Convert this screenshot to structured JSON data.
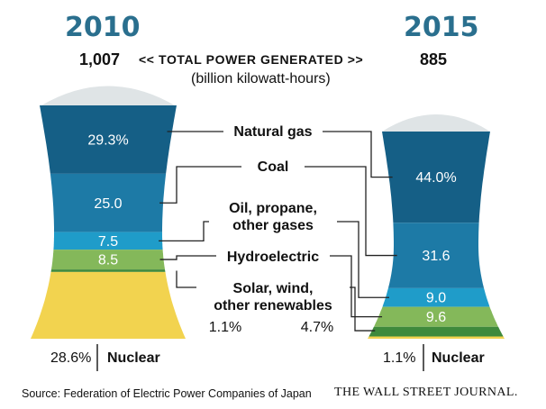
{
  "chart_data": {
    "type": "bar",
    "header": {
      "year_left": "2010",
      "year_right": "2015",
      "total_left": "1,007",
      "total_right": "885",
      "total_label": "<< TOTAL POWER GENERATED >>",
      "units": "(billion kilowatt-hours)"
    },
    "categories": [
      "Natural gas",
      "Coal",
      "Oil, propane, other gases",
      "Hydroelectric",
      "Solar, wind, other renewables",
      "Nuclear"
    ],
    "series": [
      {
        "year": "2010",
        "values": [
          29.3,
          25.0,
          7.5,
          8.5,
          1.1,
          28.6
        ],
        "labels": [
          "29.3%",
          "25.0",
          "7.5",
          "8.5",
          "1.1%",
          "28.6%"
        ]
      },
      {
        "year": "2015",
        "values": [
          44.0,
          31.6,
          9.0,
          9.6,
          4.7,
          1.1
        ],
        "labels": [
          "44.0%",
          "31.6",
          "9.0",
          "9.6",
          "4.7%",
          "1.1%"
        ]
      }
    ],
    "category_labels": {
      "natural_gas": "Natural gas",
      "coal": "Coal",
      "oil_line1": "Oil, propane,",
      "oil_line2": "other gases",
      "hydro": "Hydroelectric",
      "renew_line1": "Solar, wind,",
      "renew_line2": "other renewables",
      "nuclear": "Nuclear"
    },
    "colors": {
      "natural_gas": "#155f86",
      "coal": "#1d7aa6",
      "oil": "#1f9cc9",
      "hydro": "#84b85a",
      "renewables": "#3f8a3c",
      "nuclear": "#f2d34f",
      "steam": "#dfe4e6",
      "heading": "#2a6f8e"
    }
  },
  "footer": {
    "source": "Source: Federation of Electric Power Companies of Japan",
    "publisher": "THE WALL STREET JOURNAL."
  }
}
